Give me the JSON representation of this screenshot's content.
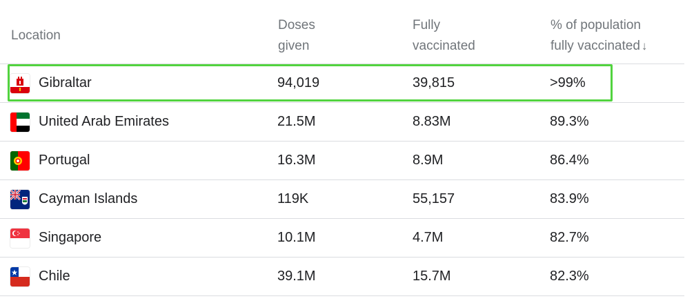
{
  "header": {
    "location": "Location",
    "doses_line1": "Doses",
    "doses_line2": "given",
    "fully_line1": "Fully",
    "fully_line2": "vaccinated",
    "pct_line1": "% of population",
    "pct_line2": "fully vaccinated",
    "sort_icon": "arrow-down-icon"
  },
  "rows": [
    {
      "location": "Gibraltar",
      "doses": "94,019",
      "fully": "39,815",
      "pct": ">99%",
      "flag": "gibraltar-flag-icon",
      "highlighted": true
    },
    {
      "location": "United Arab Emirates",
      "doses": "21.5M",
      "fully": "8.83M",
      "pct": "89.3%",
      "flag": "uae-flag-icon"
    },
    {
      "location": "Portugal",
      "doses": "16.3M",
      "fully": "8.9M",
      "pct": "86.4%",
      "flag": "portugal-flag-icon"
    },
    {
      "location": "Cayman Islands",
      "doses": "119K",
      "fully": "55,157",
      "pct": "83.9%",
      "flag": "cayman-islands-flag-icon"
    },
    {
      "location": "Singapore",
      "doses": "10.1M",
      "fully": "4.7M",
      "pct": "82.7%",
      "flag": "singapore-flag-icon"
    },
    {
      "location": "Chile",
      "doses": "39.1M",
      "fully": "15.7M",
      "pct": "82.3%",
      "flag": "chile-flag-icon"
    }
  ],
  "colors": {
    "highlight": "#52d33f",
    "header_text": "#70757a",
    "body_text": "#202124",
    "divider": "#dadce0"
  }
}
